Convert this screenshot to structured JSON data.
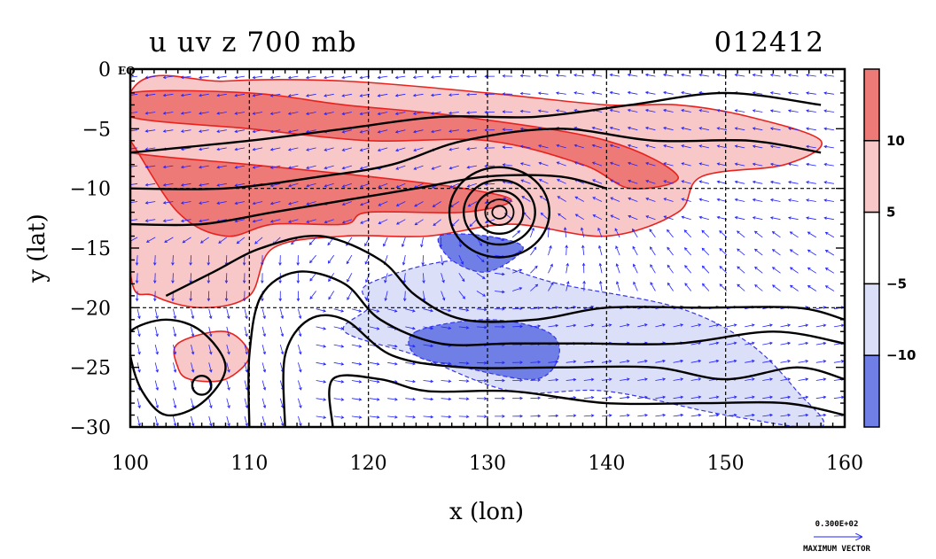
{
  "chart_data": {
    "type": "heatmap",
    "title": "u uv z 700 mb",
    "date_label": "012412",
    "xlabel": "x (lon)",
    "ylabel": "y (lat)",
    "corner_label": "EQ",
    "xlim": [
      100,
      160
    ],
    "ylim": [
      -30,
      0
    ],
    "x_ticks": [
      100,
      110,
      120,
      130,
      140,
      150,
      160
    ],
    "y_ticks": [
      0,
      -5,
      -10,
      -15,
      -20,
      -25,
      -30
    ],
    "x_gridlines": [
      110,
      120,
      130,
      140,
      150
    ],
    "y_gridlines": [
      -10,
      -20
    ],
    "colorbar": {
      "levels": [
        -15,
        -10,
        -5,
        5,
        10,
        15
      ],
      "labels": [
        10,
        5,
        -5,
        -10
      ],
      "colors": [
        "#6f7fe6",
        "#dcdff8",
        "#ffffff",
        "#f8c7c7",
        "#ee7a78"
      ]
    },
    "shading_regions": [
      {
        "level": "u > 10",
        "color": "#ee7a78",
        "outline": [
          [
            100,
            -4
          ],
          [
            110,
            -5
          ],
          [
            120,
            -6
          ],
          [
            130,
            -6
          ],
          [
            138,
            -8
          ],
          [
            142,
            -10
          ],
          [
            146,
            -9
          ],
          [
            140,
            -6
          ],
          [
            128,
            -4
          ],
          [
            118,
            -3
          ],
          [
            110,
            -2
          ],
          [
            100,
            -2
          ]
        ]
      },
      {
        "level": "u > 10",
        "color": "#ee7a78",
        "outline": [
          [
            100,
            -6
          ],
          [
            104,
            -12
          ],
          [
            108,
            -14
          ],
          [
            112,
            -13
          ],
          [
            118,
            -13
          ],
          [
            120,
            -12
          ],
          [
            128,
            -12
          ],
          [
            132,
            -11
          ],
          [
            128,
            -10
          ],
          [
            120,
            -9
          ],
          [
            110,
            -8
          ],
          [
            100,
            -7
          ]
        ]
      },
      {
        "level": "u > 5",
        "color": "#f8c7c7",
        "outline": [
          [
            100,
            -2
          ],
          [
            108,
            -1
          ],
          [
            118,
            -1
          ],
          [
            130,
            -2
          ],
          [
            140,
            -3
          ],
          [
            146,
            -3
          ],
          [
            152,
            -4
          ],
          [
            158,
            -6
          ],
          [
            155,
            -8
          ],
          [
            148,
            -9
          ],
          [
            146,
            -12
          ],
          [
            140,
            -14
          ],
          [
            132,
            -13
          ],
          [
            125,
            -14
          ],
          [
            118,
            -14
          ],
          [
            112,
            -15
          ],
          [
            110,
            -19
          ],
          [
            106,
            -20
          ],
          [
            102,
            -19
          ],
          [
            100,
            -17
          ]
        ]
      },
      {
        "level": "u > 5",
        "color": "#f8c7c7",
        "outline": [
          [
            104,
            -23
          ],
          [
            108,
            -22
          ],
          [
            110,
            -24
          ],
          [
            108,
            -26
          ],
          [
            105,
            -26
          ],
          [
            104,
            -25
          ]
        ]
      },
      {
        "level": "u < -5",
        "color": "#dcdff8",
        "outline": [
          [
            120,
            -18
          ],
          [
            128,
            -16
          ],
          [
            136,
            -18
          ],
          [
            146,
            -20
          ],
          [
            152,
            -23
          ],
          [
            156,
            -27
          ],
          [
            158,
            -30
          ],
          [
            150,
            -29
          ],
          [
            140,
            -27
          ],
          [
            132,
            -27
          ],
          [
            124,
            -24
          ],
          [
            118,
            -22
          ],
          [
            120,
            -20
          ]
        ]
      },
      {
        "level": "u < -10",
        "color": "#6f7fe6",
        "outline": [
          [
            124,
            -22
          ],
          [
            130,
            -21
          ],
          [
            135,
            -22
          ],
          [
            136,
            -24
          ],
          [
            134,
            -26
          ],
          [
            128,
            -25
          ],
          [
            124,
            -24
          ]
        ]
      },
      {
        "level": "u < -10",
        "color": "#6f7fe6",
        "outline": [
          [
            126,
            -14
          ],
          [
            130,
            -14
          ],
          [
            133,
            -15
          ],
          [
            130,
            -17
          ],
          [
            127,
            -16
          ]
        ]
      }
    ],
    "height_contours": [
      [
        [
          100,
          -7
        ],
        [
          110,
          -6
        ],
        [
          118,
          -5
        ],
        [
          126,
          -4
        ],
        [
          134,
          -4
        ],
        [
          142,
          -3
        ],
        [
          150,
          -2
        ],
        [
          158,
          -3
        ]
      ],
      [
        [
          100,
          -10
        ],
        [
          108,
          -10
        ],
        [
          116,
          -9
        ],
        [
          122,
          -8
        ],
        [
          128,
          -6
        ],
        [
          136,
          -5
        ],
        [
          144,
          -6
        ],
        [
          152,
          -6
        ],
        [
          158,
          -7
        ]
      ],
      [
        [
          100,
          -13
        ],
        [
          106,
          -13
        ],
        [
          112,
          -12
        ],
        [
          118,
          -11
        ],
        [
          124,
          -10
        ],
        [
          130,
          -9
        ],
        [
          136,
          -9
        ],
        [
          140,
          -10
        ]
      ],
      [
        [
          103,
          -19
        ],
        [
          107,
          -17
        ],
        [
          111,
          -15
        ],
        [
          116,
          -14
        ],
        [
          121,
          -16
        ],
        [
          124,
          -19
        ],
        [
          128,
          -21
        ],
        [
          134,
          -21
        ],
        [
          140,
          -20
        ],
        [
          148,
          -20
        ],
        [
          156,
          -20
        ],
        [
          160,
          -21
        ]
      ],
      [
        [
          110,
          -30
        ],
        [
          110,
          -24
        ],
        [
          111,
          -19
        ],
        [
          114,
          -17
        ],
        [
          118,
          -18
        ],
        [
          121,
          -21
        ],
        [
          126,
          -23
        ],
        [
          132,
          -23
        ],
        [
          138,
          -23
        ],
        [
          146,
          -23
        ],
        [
          154,
          -22
        ],
        [
          160,
          -23
        ]
      ],
      [
        [
          113,
          -30
        ],
        [
          113,
          -24
        ],
        [
          115,
          -21
        ],
        [
          118,
          -21
        ],
        [
          122,
          -24
        ],
        [
          128,
          -25
        ],
        [
          136,
          -25
        ],
        [
          144,
          -25
        ],
        [
          150,
          -26
        ],
        [
          156,
          -25
        ],
        [
          160,
          -26
        ]
      ],
      [
        [
          117,
          -30
        ],
        [
          117,
          -26
        ],
        [
          121,
          -26
        ],
        [
          125,
          -27
        ],
        [
          132,
          -27
        ],
        [
          140,
          -28
        ],
        [
          148,
          -28
        ],
        [
          155,
          -28
        ],
        [
          160,
          -29
        ]
      ],
      [
        [
          100,
          -22
        ],
        [
          103,
          -21
        ],
        [
          106,
          -22
        ],
        [
          108,
          -25
        ],
        [
          106,
          -28
        ],
        [
          103,
          -29
        ],
        [
          101,
          -27
        ],
        [
          100,
          -24
        ]
      ]
    ],
    "vortex": {
      "center": [
        131,
        -12
      ],
      "radii": [
        0.6,
        1.2,
        2.0,
        3.0,
        4.2
      ]
    },
    "low_center": {
      "center": [
        106,
        -26.5
      ],
      "radius": 0.8
    },
    "vector_field": {
      "description": "wind vectors",
      "reference_vector": "0.300E+02",
      "reference_label": "MAXIMUM VECTOR"
    }
  }
}
